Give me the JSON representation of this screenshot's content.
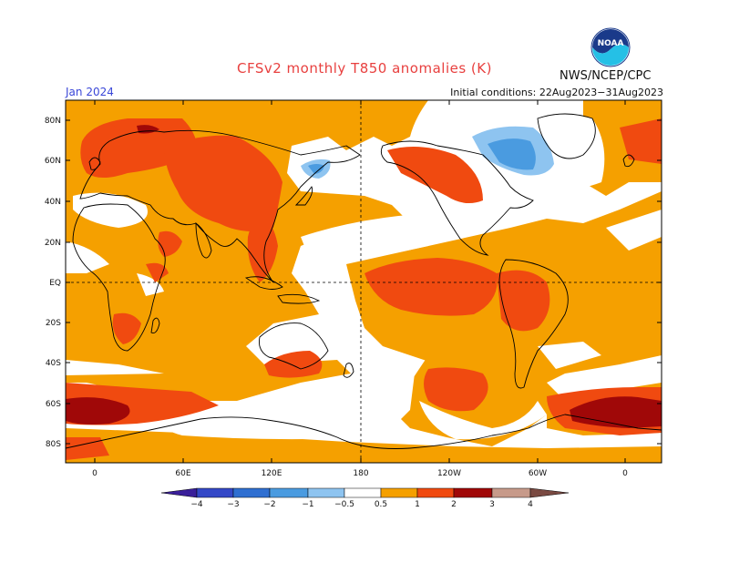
{
  "header": {
    "title": "CFSv2 monthly T850 anomalies (K)",
    "org": "NWS/NCEP/CPC",
    "month": "Jan 2024",
    "initial_conditions": "Initial conditions: 22Aug2023−31Aug2023"
  },
  "logo": {
    "text": "NOAA",
    "icon": "noaa-logo-icon"
  },
  "map": {
    "lat_labels": [
      "80N",
      "60N",
      "40N",
      "20N",
      "EQ",
      "20S",
      "40S",
      "60S",
      "80S"
    ],
    "lon_labels": [
      "0",
      "60E",
      "120E",
      "180",
      "120W",
      "60W",
      "0"
    ]
  },
  "legend": {
    "labels": [
      "−4",
      "−3",
      "−2",
      "−1",
      "−0.5",
      "0.5",
      "1",
      "2",
      "3",
      "4"
    ],
    "colors": [
      "#3a1f9a",
      "#3448c7",
      "#2f6fd1",
      "#4a9be0",
      "#8ec4f0",
      "#ffffff",
      "#f5a000",
      "#f04a10",
      "#a00808",
      "#c79a8a",
      "#7a4a42"
    ]
  },
  "colors": {
    "cool1": "#8ec4f0",
    "cool2": "#4a9be0",
    "warm1": "#f5a000",
    "warm2": "#f04a10",
    "warm3": "#a00808"
  }
}
